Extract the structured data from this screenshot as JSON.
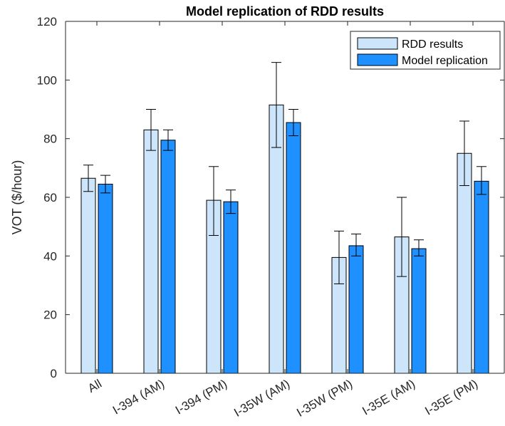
{
  "chart_data": {
    "type": "bar",
    "title": "Model replication of RDD results",
    "xlabel": "",
    "ylabel": "VOT ($/hour)",
    "ylim": [
      0,
      120
    ],
    "yticks": [
      "0",
      "20",
      "40",
      "60",
      "80",
      "100",
      "120"
    ],
    "categories": [
      "All",
      "I-394 (AM)",
      "I-394 (PM)",
      "I-35W (AM)",
      "I-35W (PM)",
      "I-35E (AM)",
      "I-35E (PM)"
    ],
    "series": [
      {
        "name": "RDD results",
        "color": "#cce5fb",
        "values": [
          66.5,
          83,
          59,
          91.5,
          39.5,
          46.5,
          75
        ],
        "err_low": [
          62,
          76,
          47,
          77,
          30.5,
          33,
          64
        ],
        "err_high": [
          71,
          90,
          70.5,
          106,
          48.5,
          60,
          86
        ]
      },
      {
        "name": "Model replication",
        "color": "#1e90ff",
        "values": [
          64.5,
          79.5,
          58.5,
          85.5,
          43.5,
          42.5,
          65.5
        ],
        "err_low": [
          61.5,
          76,
          54.5,
          81,
          40,
          40,
          61
        ],
        "err_high": [
          67.5,
          83,
          62.5,
          90,
          47.5,
          45.5,
          70.5
        ]
      }
    ],
    "legend_position": "top-right",
    "grid": false
  }
}
